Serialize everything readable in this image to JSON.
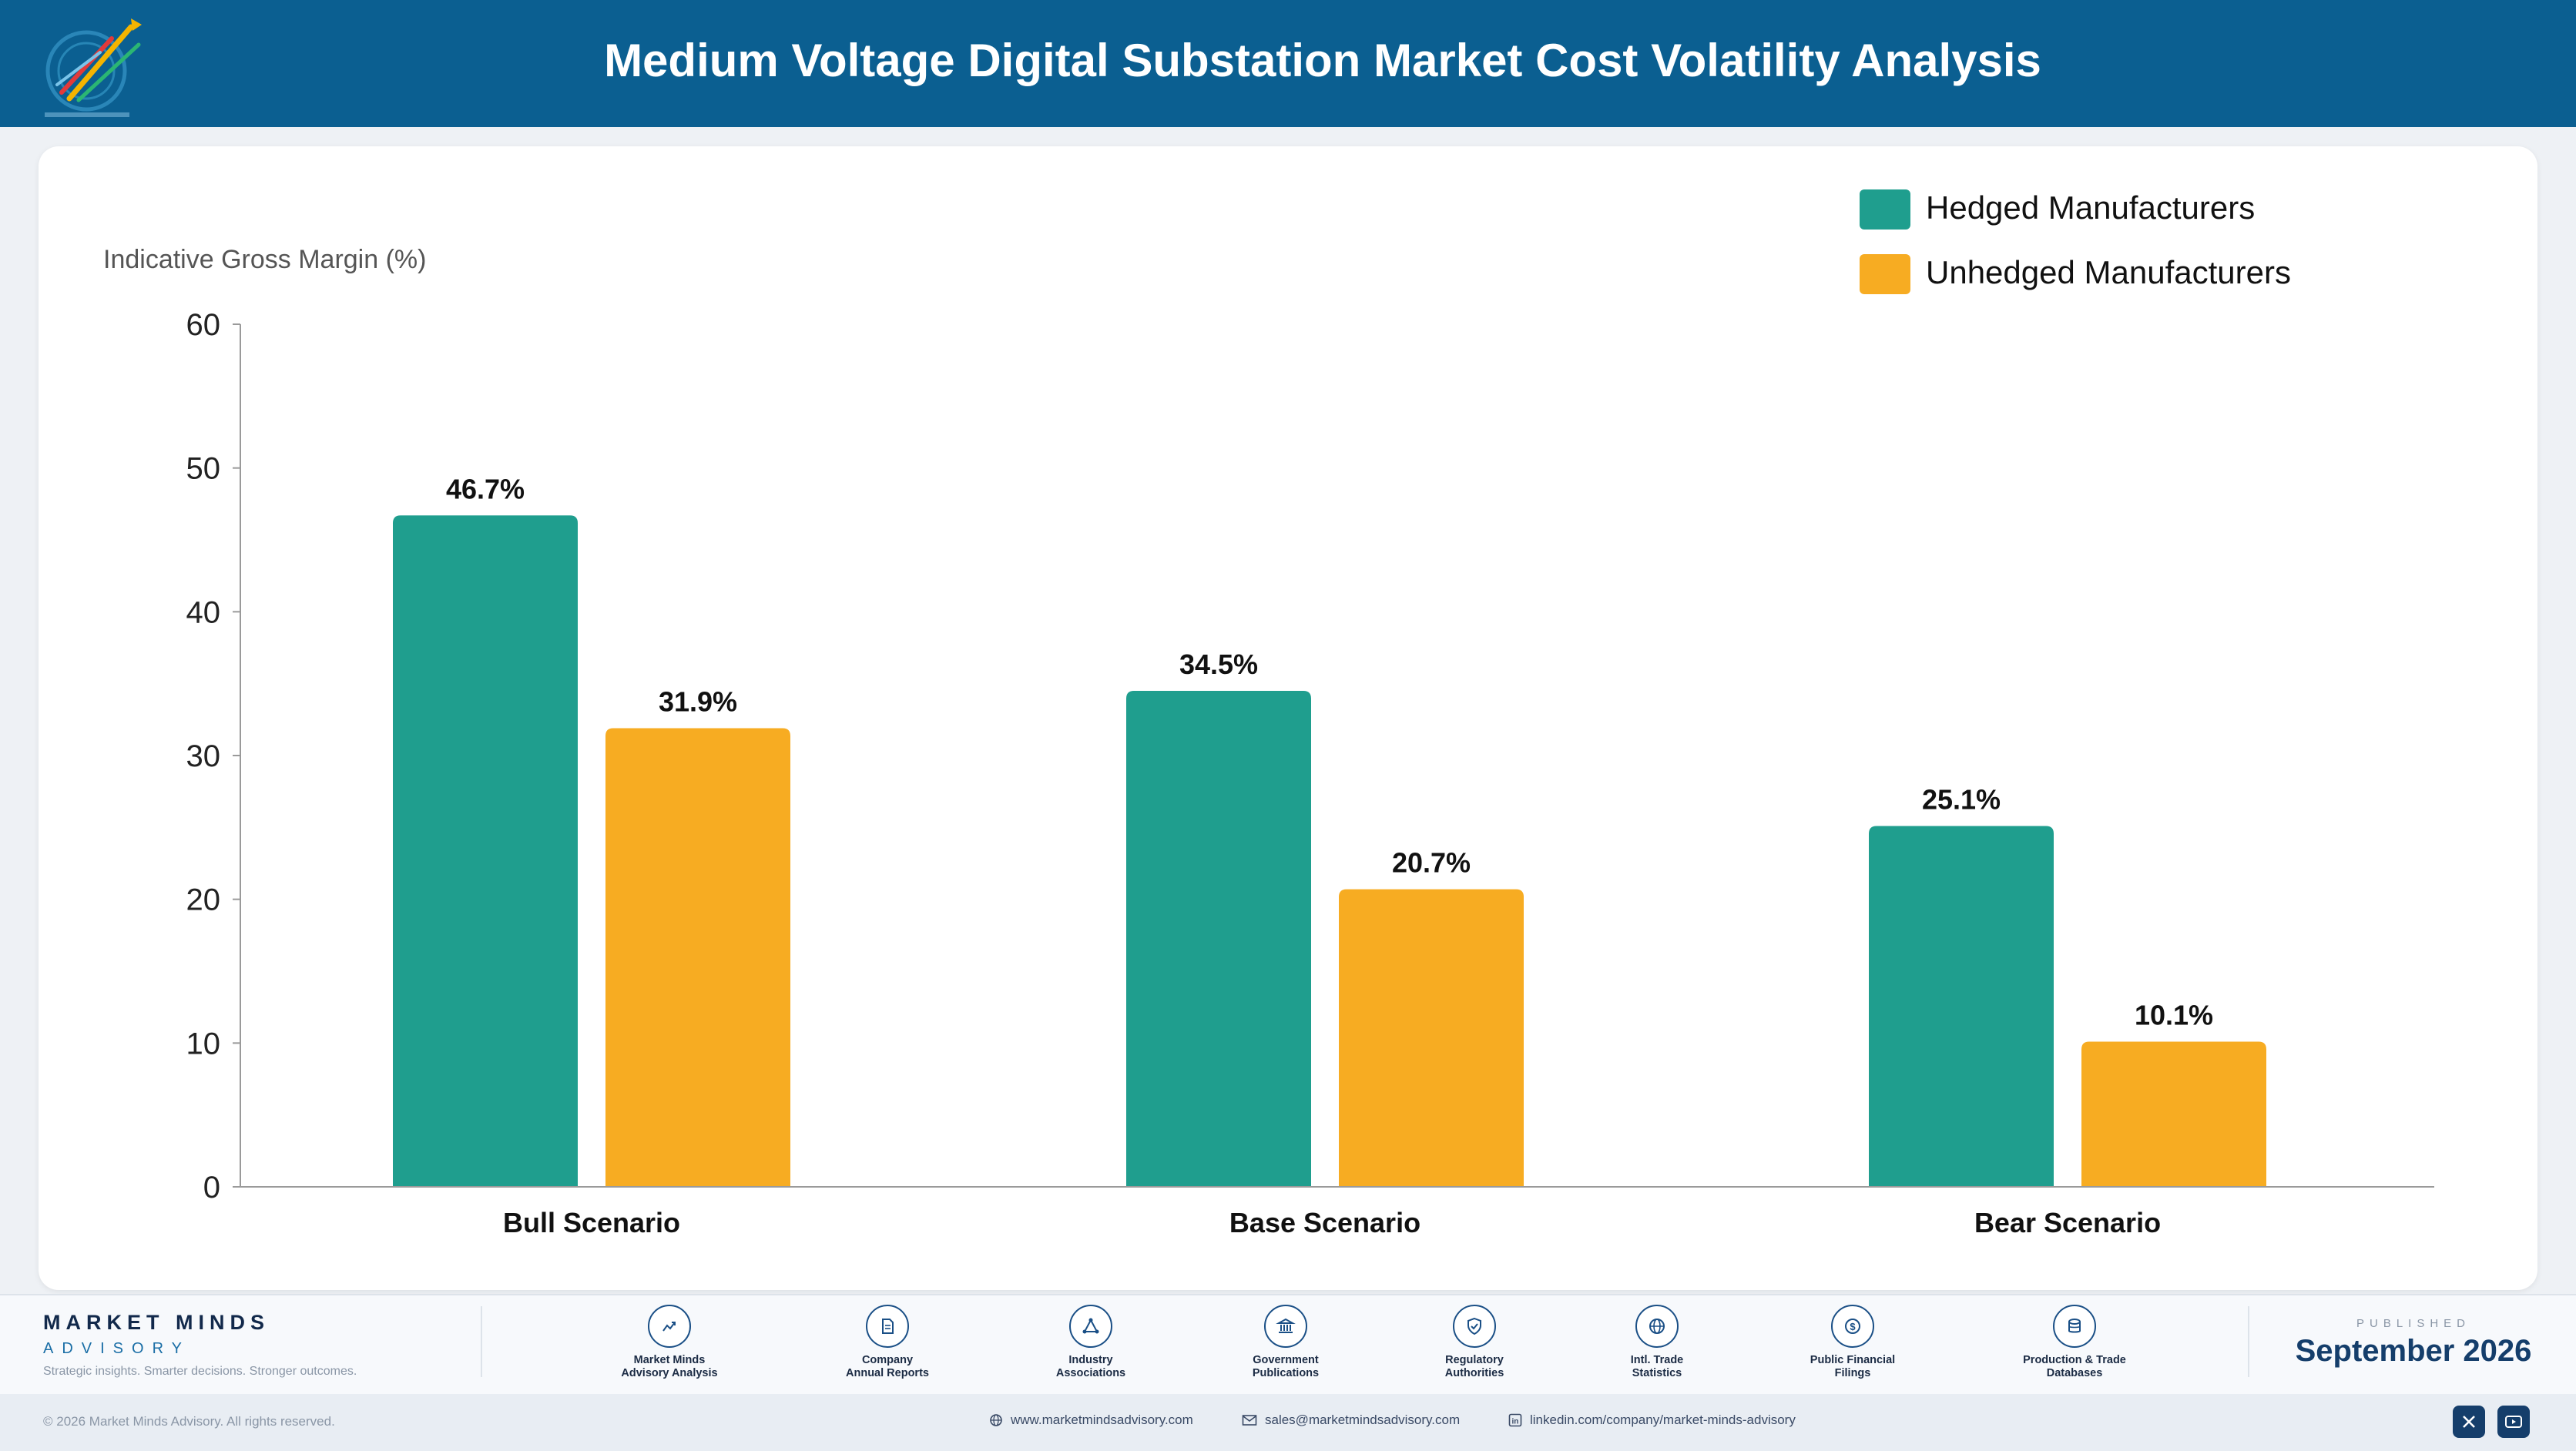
{
  "header": {
    "title": "Medium Voltage Digital Substation Market Cost Volatility Analysis"
  },
  "colors": {
    "header_bg": "#0b5f91",
    "hedged": "#1f9e8e",
    "unhedged": "#f7ac22"
  },
  "chart_data": {
    "type": "bar",
    "title": "",
    "ylabel": "Indicative Gross Margin (%)",
    "xlabel": "",
    "ylim": [
      0,
      60
    ],
    "yticks": [
      0,
      10,
      20,
      30,
      40,
      50,
      60
    ],
    "categories": [
      "Bull Scenario",
      "Base Scenario",
      "Bear Scenario"
    ],
    "series": [
      {
        "name": "Hedged Manufacturers",
        "color": "#1f9e8e",
        "values": [
          46.7,
          34.5,
          25.1
        ],
        "labels": [
          "46.7%",
          "34.5%",
          "25.1%"
        ]
      },
      {
        "name": "Unhedged Manufacturers",
        "color": "#f7ac22",
        "values": [
          31.9,
          20.7,
          10.1
        ],
        "labels": [
          "31.9%",
          "20.7%",
          "10.1%"
        ]
      }
    ],
    "legend_position": "top-right",
    "grid": false
  },
  "footer": {
    "brand_name": "MARKET MINDS",
    "brand_sub": "ADVISORY",
    "tagline": "Strategic insights. Smarter decisions. Stronger outcomes.",
    "sources": [
      {
        "icon": "trend-chart-icon",
        "line1": "Market Minds",
        "line2": "Advisory Analysis"
      },
      {
        "icon": "document-icon",
        "line1": "Company",
        "line2": "Annual Reports"
      },
      {
        "icon": "network-icon",
        "line1": "Industry",
        "line2": "Associations"
      },
      {
        "icon": "government-building-icon",
        "line1": "Government",
        "line2": "Publications"
      },
      {
        "icon": "shield-check-icon",
        "line1": "Regulatory",
        "line2": "Authorities"
      },
      {
        "icon": "globe-icon",
        "line1": "Intl. Trade",
        "line2": "Statistics"
      },
      {
        "icon": "dollar-coin-icon",
        "line1": "Public Financial",
        "line2": "Filings"
      },
      {
        "icon": "database-icon",
        "line1": "Production & Trade",
        "line2": "Databases"
      }
    ],
    "published_label": "PUBLISHED",
    "published_date": "September 2026",
    "copyright": "© 2026 Market Minds Advisory. All rights reserved.",
    "website": "www.marketmindsadvisory.com",
    "email": "sales@marketmindsadvisory.com",
    "linkedin": "linkedin.com/company/market-minds-advisory"
  }
}
